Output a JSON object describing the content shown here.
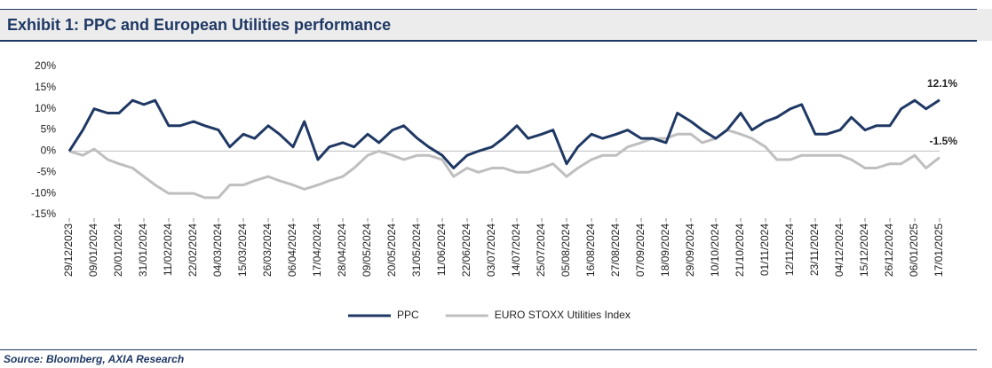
{
  "chart_data": {
    "type": "line",
    "title": "Exhibit 1: PPC and European Utilities performance",
    "source": "Source: Bloomberg, AXIA Research",
    "x": [
      "29/12/2023",
      "04/01/2024",
      "09/01/2024",
      "15/01/2024",
      "20/01/2024",
      "26/01/2024",
      "31/01/2024",
      "05/02/2024",
      "11/02/2024",
      "16/02/2024",
      "22/02/2024",
      "27/02/2024",
      "04/03/2024",
      "09/03/2024",
      "15/03/2024",
      "20/03/2024",
      "26/03/2024",
      "31/03/2024",
      "06/04/2024",
      "11/04/2024",
      "17/04/2024",
      "22/04/2024",
      "28/04/2024",
      "03/05/2024",
      "09/05/2024",
      "14/05/2024",
      "20/05/2024",
      "25/05/2024",
      "31/05/2024",
      "05/06/2024",
      "11/06/2024",
      "16/06/2024",
      "22/06/2024",
      "27/06/2024",
      "03/07/2024",
      "08/07/2024",
      "14/07/2024",
      "19/07/2024",
      "25/07/2024",
      "30/07/2024",
      "05/08/2024",
      "10/08/2024",
      "16/08/2024",
      "21/08/2024",
      "27/08/2024",
      "01/09/2024",
      "07/09/2024",
      "12/09/2024",
      "18/09/2024",
      "23/09/2024",
      "29/09/2024",
      "04/10/2024",
      "10/10/2024",
      "15/10/2024",
      "21/10/2024",
      "26/10/2024",
      "01/11/2024",
      "06/11/2024",
      "12/11/2024",
      "17/11/2024",
      "23/11/2024",
      "28/11/2024",
      "04/12/2024",
      "09/12/2024",
      "15/12/2024",
      "20/12/2024",
      "26/12/2024",
      "31/12/2024",
      "06/01/2025",
      "11/01/2025",
      "17/01/2025"
    ],
    "series": [
      {
        "name": "PPC",
        "color": "#1f3864",
        "values": [
          0,
          5,
          10,
          9,
          9,
          12,
          11,
          12,
          6,
          6,
          7,
          6,
          5,
          1,
          4,
          3,
          6,
          4,
          1,
          7,
          -2,
          1,
          2,
          1,
          4,
          2,
          5,
          6,
          3,
          1,
          -1,
          -4,
          -1,
          0,
          1,
          3,
          6,
          3,
          4,
          5,
          -3,
          1,
          4,
          3,
          4,
          5,
          3,
          3,
          2,
          9,
          7,
          5,
          3,
          5,
          9,
          5,
          7,
          8,
          10,
          11,
          4,
          4,
          5,
          8,
          5,
          6,
          6,
          10,
          12,
          10,
          12.1
        ],
        "value_labels": [
          null,
          null,
          null,
          null,
          null,
          null,
          null,
          null,
          null,
          null,
          null,
          null,
          null,
          null,
          null,
          null,
          null,
          null,
          null,
          null,
          null,
          null,
          null,
          null,
          null,
          null,
          null,
          null,
          null,
          null,
          null,
          null,
          null,
          null,
          null,
          null,
          null,
          null,
          null,
          null,
          null,
          null,
          null,
          null,
          null,
          null,
          null,
          null,
          null,
          null,
          null,
          null,
          null,
          null,
          null,
          null,
          null,
          null,
          null,
          null,
          null,
          null,
          null,
          null,
          null,
          null,
          null,
          null,
          null,
          null,
          "12.1%"
        ]
      },
      {
        "name": "EURO STOXX Utilities Index",
        "color": "#bfbfbf",
        "values": [
          0,
          -1,
          0.5,
          -2,
          -3,
          -4,
          -6,
          -8,
          -10,
          -10,
          -10,
          -11,
          -11,
          -8,
          -8,
          -7,
          -6,
          -7,
          -8,
          -9,
          -8,
          -7,
          -6,
          -4,
          -1,
          0,
          -1,
          -2,
          -1,
          -1,
          -2,
          -6,
          -4,
          -5,
          -4,
          -4,
          -5,
          -5,
          -4,
          -3,
          -6,
          -4,
          -2,
          -1,
          -1,
          1,
          2,
          3,
          3,
          4,
          4,
          2,
          3,
          5,
          4,
          3,
          1,
          -2,
          -2,
          -1,
          -1,
          -1,
          -1,
          -2,
          -4,
          -4,
          -3,
          -3,
          -1,
          -4,
          -1.5
        ],
        "value_labels": [
          null,
          null,
          null,
          null,
          null,
          null,
          null,
          null,
          null,
          null,
          null,
          null,
          null,
          null,
          null,
          null,
          null,
          null,
          null,
          null,
          null,
          null,
          null,
          null,
          null,
          null,
          null,
          null,
          null,
          null,
          null,
          null,
          null,
          null,
          null,
          null,
          null,
          null,
          null,
          null,
          null,
          null,
          null,
          null,
          null,
          null,
          null,
          null,
          null,
          null,
          null,
          null,
          null,
          null,
          null,
          null,
          null,
          null,
          null,
          null,
          null,
          null,
          null,
          null,
          null,
          null,
          null,
          null,
          null,
          null,
          "-1.5%"
        ]
      }
    ],
    "xlim": [
      "29/12/2023",
      "17/01/2025"
    ],
    "xticks": [
      "29/12/2023",
      "09/01/2024",
      "20/01/2024",
      "31/01/2024",
      "11/02/2024",
      "22/02/2024",
      "04/03/2024",
      "15/03/2024",
      "26/03/2024",
      "06/04/2024",
      "17/04/2024",
      "28/04/2024",
      "09/05/2024",
      "20/05/2024",
      "31/05/2024",
      "11/06/2024",
      "22/06/2024",
      "03/07/2024",
      "14/07/2024",
      "25/07/2024",
      "05/08/2024",
      "16/08/2024",
      "27/08/2024",
      "07/09/2024",
      "18/09/2024",
      "29/09/2024",
      "10/10/2024",
      "21/10/2024",
      "01/11/2024",
      "12/11/2024",
      "23/11/2024",
      "04/12/2024",
      "15/12/2024",
      "26/12/2024",
      "06/01/2025",
      "17/01/2025"
    ],
    "ylim": [
      -15,
      20
    ],
    "yticks": [
      {
        "value": -15,
        "label": "-15%"
      },
      {
        "value": -10,
        "label": "-10%"
      },
      {
        "value": -5,
        "label": "-5%"
      },
      {
        "value": 0,
        "label": "0%"
      },
      {
        "value": 5,
        "label": "5%"
      },
      {
        "value": 10,
        "label": "10%"
      },
      {
        "value": 15,
        "label": "15%"
      },
      {
        "value": 20,
        "label": "20%"
      }
    ],
    "grid": false,
    "legend": "bottom"
  }
}
